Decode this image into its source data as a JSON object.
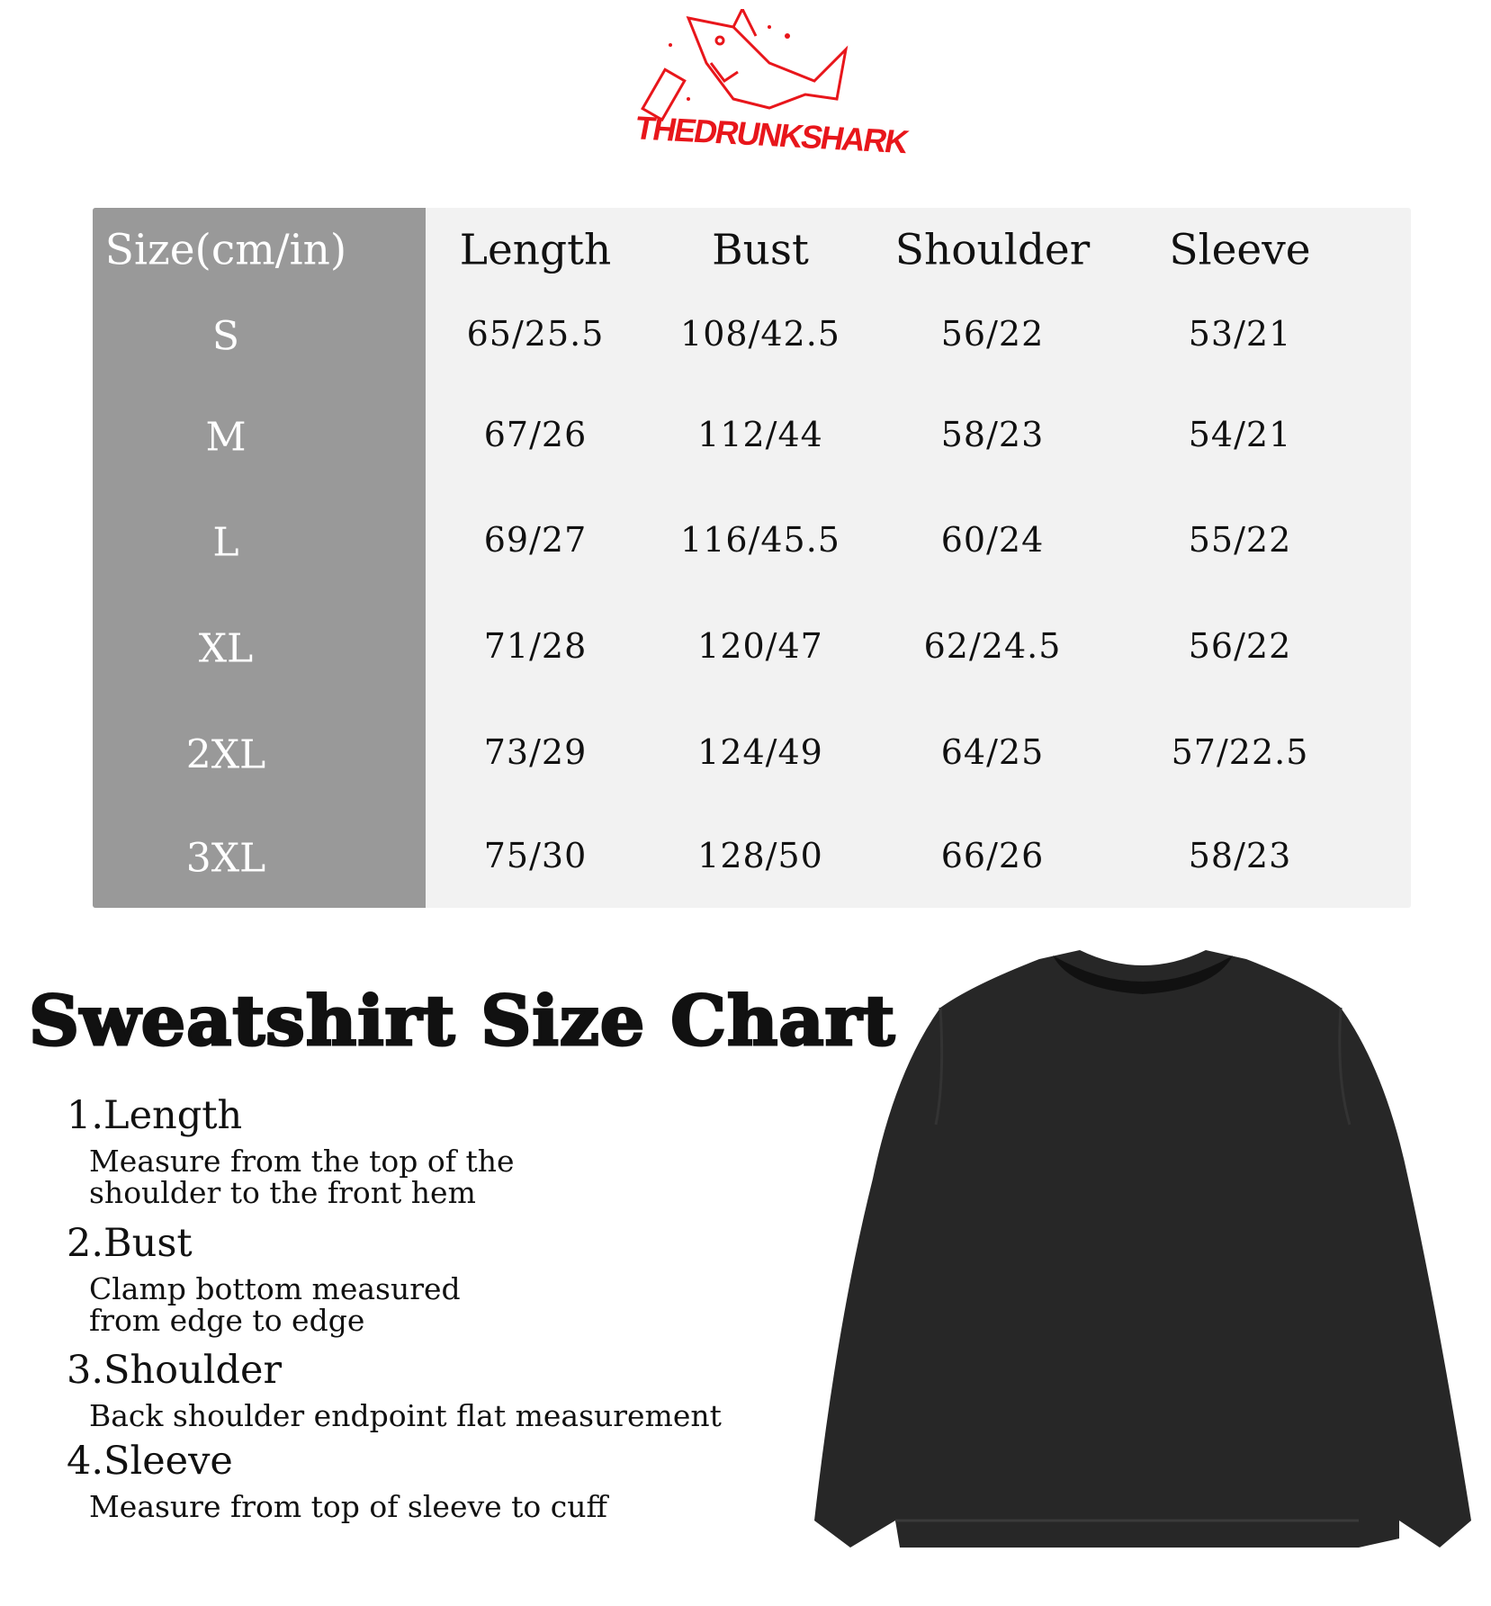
{
  "brand": {
    "name": "THEDRUNKSHARK",
    "color": "#e8161b"
  },
  "table": {
    "headers": [
      "Size(cm/in)",
      "Length",
      "Bust",
      "Shoulder",
      "Sleeve"
    ],
    "rows": [
      {
        "size": "S",
        "values": [
          "65/25.5",
          "108/42.5",
          "56/22",
          "53/21"
        ]
      },
      {
        "size": "M",
        "values": [
          "67/26",
          "112/44",
          "58/23",
          "54/21"
        ]
      },
      {
        "size": "L",
        "values": [
          "69/27",
          "116/45.5",
          "60/24",
          "55/22"
        ]
      },
      {
        "size": "XL",
        "values": [
          "71/28",
          "120/47",
          "62/24.5",
          "56/22"
        ]
      },
      {
        "size": "2XL",
        "values": [
          "73/29",
          "124/49",
          "64/25",
          "57/22.5"
        ]
      },
      {
        "size": "3XL",
        "values": [
          "75/30",
          "128/50",
          "66/26",
          "58/23"
        ]
      }
    ]
  },
  "title": "Sweatshirt Size Chart",
  "guide": [
    {
      "heading": "1.Length",
      "text": "Measure from the top of the shoulder to the front hem"
    },
    {
      "heading": "2.Bust",
      "text": "Clamp bottom measured from edge to edge"
    },
    {
      "heading": "3.Shoulder",
      "text": "Back shoulder endpoint flat measurement"
    },
    {
      "heading": "4.Sleeve",
      "text": "Measure from top of sleeve to cuff"
    }
  ],
  "product_image": "black crewneck sweatshirt"
}
